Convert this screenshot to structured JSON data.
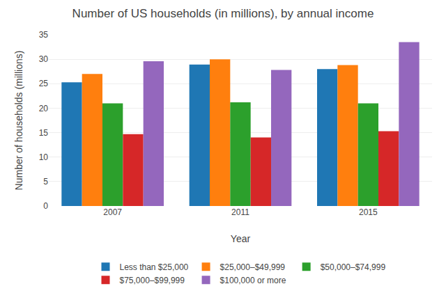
{
  "chart_data": {
    "type": "bar",
    "title": "Number of US households (in millions), by annual income",
    "xlabel": "Year",
    "ylabel": "Number of households (millions)",
    "categories": [
      "2007",
      "2011",
      "2015"
    ],
    "series": [
      {
        "name": "Less than $25,000",
        "values": [
          25.3,
          28.9,
          28.0
        ]
      },
      {
        "name": "$25,000–$49,999",
        "values": [
          27.0,
          30.0,
          28.8
        ]
      },
      {
        "name": "$50,000–$74,999",
        "values": [
          21.0,
          21.2,
          21.0
        ]
      },
      {
        "name": "$75,000–$99,999",
        "values": [
          14.7,
          14.0,
          15.3
        ]
      },
      {
        "name": "$100,000 or more",
        "values": [
          29.6,
          27.8,
          33.5
        ]
      }
    ],
    "ylim": [
      0,
      35
    ],
    "yticks": [
      0,
      5,
      10,
      15,
      20,
      25,
      30,
      35
    ],
    "grid": true,
    "legend": "bottom"
  }
}
